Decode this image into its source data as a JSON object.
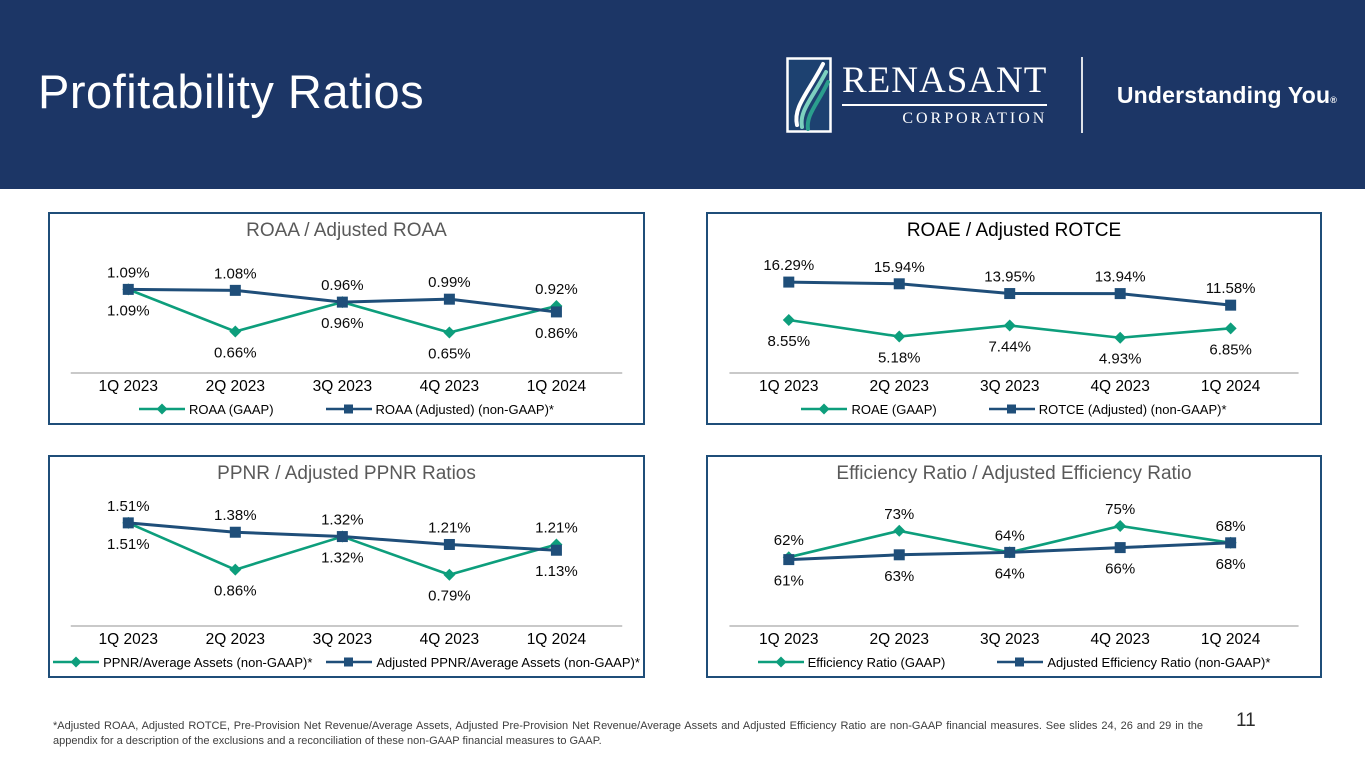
{
  "slide": {
    "title": "Profitability Ratios",
    "page_number": "11",
    "footnote": "*Adjusted ROAA, Adjusted ROTCE, Pre-Provision Net Revenue/Average Assets, Adjusted Pre-Provision Net Revenue/Average Assets and Adjusted Efficiency Ratio are non-GAAP financial measures. See slides 24, 26 and 29 in the appendix for a description of the exclusions and a reconciliation of these non-GAAP financial measures to GAAP.",
    "brand": {
      "wordmark": "RENASANT",
      "wordmark_sub": "CORPORATION",
      "tagline": "Understanding You",
      "registered": "®"
    },
    "colors": {
      "header_bg": "#1c3666",
      "panel_border": "#1f4e79",
      "green": "#0d9e7c",
      "navy": "#1f4e79",
      "title_gray": "#595959",
      "axis_line": "#a9a9a9"
    }
  },
  "chart_data": [
    {
      "type": "line",
      "title": "ROAA / Adjusted ROAA",
      "title_color": "#595959",
      "categories": [
        "1Q 2023",
        "2Q 2023",
        "3Q 2023",
        "4Q 2023",
        "1Q 2024"
      ],
      "series": [
        {
          "name": "ROAA (GAAP)",
          "color": "green",
          "marker": "diamond",
          "values": [
            1.09,
            0.66,
            0.96,
            0.65,
            0.92
          ],
          "labels": [
            "1.09%",
            "0.66%",
            "0.96%",
            "0.65%",
            "0.92%"
          ]
        },
        {
          "name": "ROAA (Adjusted) (non-GAAP)*",
          "color": "navy",
          "marker": "square",
          "values": [
            1.09,
            1.08,
            0.96,
            0.99,
            0.86
          ],
          "labels": [
            "1.09%",
            "1.08%",
            "0.96%",
            "0.99%",
            "0.86%"
          ]
        }
      ],
      "ylim": [
        0.4,
        1.4
      ],
      "legend_position": "bottom",
      "grid": false
    },
    {
      "type": "line",
      "title": "ROAE / Adjusted ROTCE",
      "title_color": "#000000",
      "categories": [
        "1Q 2023",
        "2Q 2023",
        "3Q 2023",
        "4Q 2023",
        "1Q 2024"
      ],
      "series": [
        {
          "name": "ROAE (GAAP)",
          "color": "green",
          "marker": "diamond",
          "values": [
            8.55,
            5.18,
            7.44,
            4.93,
            6.85
          ],
          "labels": [
            "8.55%",
            "5.18%",
            "7.44%",
            "4.93%",
            "6.85%"
          ]
        },
        {
          "name": "ROTCE (Adjusted) (non-GAAP)*",
          "color": "navy",
          "marker": "square",
          "values": [
            16.29,
            15.94,
            13.95,
            13.94,
            11.58
          ],
          "labels": [
            "16.29%",
            "15.94%",
            "13.95%",
            "13.94%",
            "11.58%"
          ]
        }
      ],
      "ylim": [
        1,
        21
      ],
      "legend_position": "bottom",
      "grid": false
    },
    {
      "type": "line",
      "title": "PPNR / Adjusted PPNR Ratios",
      "title_color": "#595959",
      "categories": [
        "1Q 2023",
        "2Q 2023",
        "3Q 2023",
        "4Q 2023",
        "1Q 2024"
      ],
      "series": [
        {
          "name": "PPNR/Average Assets (non-GAAP)*",
          "color": "green",
          "marker": "diamond",
          "values": [
            1.51,
            0.86,
            1.32,
            0.79,
            1.21
          ],
          "labels": [
            "1.51%",
            "0.86%",
            "1.32%",
            "0.79%",
            "1.21%"
          ]
        },
        {
          "name": "Adjusted PPNR/Average Assets (non-GAAP)*",
          "color": "navy",
          "marker": "square",
          "values": [
            1.51,
            1.38,
            1.32,
            1.21,
            1.13
          ],
          "labels": [
            "1.51%",
            "1.38%",
            "1.32%",
            "1.21%",
            "1.13%"
          ]
        }
      ],
      "ylim": [
        0.3,
        1.8
      ],
      "legend_position": "bottom",
      "grid": false
    },
    {
      "type": "line",
      "title": "Efficiency Ratio / Adjusted Efficiency Ratio",
      "title_color": "#595959",
      "categories": [
        "1Q 2023",
        "2Q 2023",
        "3Q 2023",
        "4Q 2023",
        "1Q 2024"
      ],
      "series": [
        {
          "name": "Efficiency Ratio (GAAP)",
          "color": "green",
          "marker": "diamond",
          "values": [
            62,
            73,
            64,
            75,
            68
          ],
          "labels": [
            "62%",
            "73%",
            "64%",
            "75%",
            "68%"
          ]
        },
        {
          "name": "Adjusted Efficiency Ratio (non-GAAP)*",
          "color": "navy",
          "marker": "square",
          "values": [
            61,
            63,
            64,
            66,
            68
          ],
          "labels": [
            "61%",
            "63%",
            "64%",
            "66%",
            "68%"
          ]
        }
      ],
      "ylim": [
        40,
        85
      ],
      "legend_position": "bottom",
      "grid": false
    }
  ]
}
